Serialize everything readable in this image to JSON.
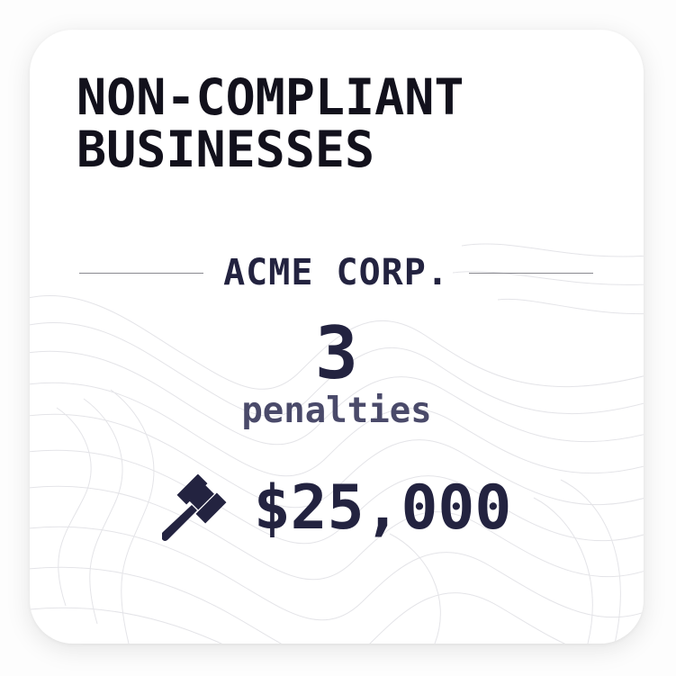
{
  "card": {
    "title": "NON-COMPLIANT\nBUSINESSES",
    "company": "ACME CORP.",
    "penalty_count": "3",
    "penalty_label": "penalties",
    "amount": "$25,000",
    "amount_icon": "gavel-icon",
    "colors": {
      "title": "#12111c",
      "primary": "#232340",
      "secondary": "#4a4a6a",
      "rule": "#8a8a90"
    }
  }
}
